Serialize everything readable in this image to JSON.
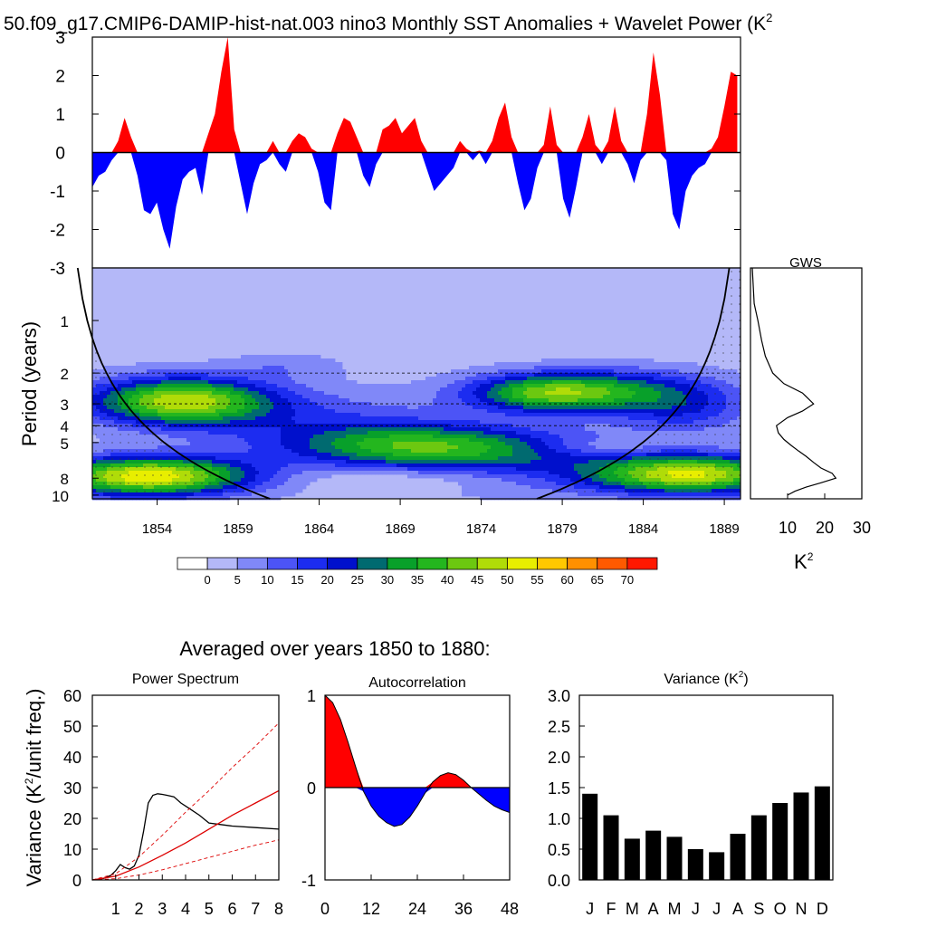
{
  "title": "50.f09_g17.CMIP6-DAMIP-hist-nat.003 nino3 Monthly SST Anomalies + Wavelet Power (K",
  "title_superscript": "2",
  "colors": {
    "positive": "#ff0000",
    "negative": "#0000ff",
    "line": "#000000",
    "red_line": "#dd0000"
  },
  "chart_data": [
    {
      "id": "timeseries",
      "type": "area",
      "ylim": [
        -3,
        3
      ],
      "yticks": [
        "3",
        "2",
        "1",
        "0",
        "-1",
        "-2",
        "-3"
      ],
      "x": [
        1850.0,
        1850.4,
        1850.8,
        1851.2,
        1851.6,
        1852.0,
        1852.4,
        1852.8,
        1853.2,
        1853.6,
        1854.0,
        1854.4,
        1854.8,
        1855.2,
        1855.6,
        1856.0,
        1856.4,
        1856.8,
        1857.2,
        1857.6,
        1858.0,
        1858.4,
        1858.8,
        1859.2,
        1859.6,
        1860.0,
        1860.4,
        1860.8,
        1861.2,
        1861.6,
        1862.0,
        1862.4,
        1862.8,
        1863.2,
        1863.6,
        1864.0,
        1864.4,
        1864.8,
        1865.2,
        1865.6,
        1866.0,
        1866.4,
        1866.8,
        1867.2,
        1867.6,
        1868.0,
        1868.4,
        1868.8,
        1869.2,
        1869.6,
        1870.0,
        1870.4,
        1870.8,
        1871.2,
        1871.6,
        1872.0,
        1872.4,
        1872.8,
        1873.2,
        1873.6,
        1874.0,
        1874.4,
        1874.8,
        1875.2,
        1875.6,
        1876.0,
        1876.4,
        1876.8,
        1877.2,
        1877.6,
        1878.0,
        1878.4,
        1878.8,
        1879.2,
        1879.6,
        1880.0,
        1880.4,
        1880.8,
        1881.2,
        1881.6,
        1882.0,
        1882.4,
        1882.8,
        1883.2,
        1883.6,
        1884.0,
        1884.4,
        1884.8,
        1885.2,
        1885.6,
        1886.0,
        1886.4,
        1886.8,
        1887.2,
        1887.6,
        1888.0,
        1888.4,
        1888.8,
        1889.2,
        1889.6,
        1890.0
      ],
      "values": [
        -0.9,
        -0.6,
        -0.5,
        -0.2,
        0.3,
        0.9,
        0.4,
        -0.6,
        -1.5,
        -1.6,
        -1.3,
        -2.0,
        -2.5,
        -1.4,
        -0.7,
        -0.5,
        -0.4,
        -1.1,
        0.5,
        1.0,
        2.1,
        3.0,
        0.6,
        -0.8,
        -1.6,
        -0.8,
        -0.3,
        -0.2,
        0.3,
        -0.3,
        -0.5,
        0.3,
        0.5,
        0.4,
        0.1,
        -0.5,
        -1.3,
        -1.5,
        0.5,
        0.9,
        0.8,
        0.4,
        -0.6,
        -0.9,
        -0.3,
        0.6,
        0.7,
        0.9,
        0.5,
        0.7,
        0.9,
        0.3,
        -0.5,
        -1.0,
        -0.8,
        -0.6,
        -0.4,
        0.3,
        0.1,
        -0.2,
        0.05,
        -0.3,
        0.3,
        0.9,
        1.3,
        0.4,
        -0.8,
        -1.5,
        -1.2,
        -0.4,
        0.2,
        1.2,
        0.2,
        -1.2,
        -1.7,
        -0.9,
        0.4,
        1.0,
        0.2,
        -0.3,
        0.3,
        1.2,
        0.3,
        -0.3,
        -0.8,
        -0.2,
        1.0,
        2.6,
        1.5,
        -0.2,
        -1.6,
        -2.0,
        -1.0,
        -0.6,
        -0.4,
        -0.3,
        0.1,
        0.4,
        1.2,
        2.1,
        2.0
      ]
    },
    {
      "id": "wavelet",
      "type": "heatmap",
      "ylabel": "Period (years)",
      "x_ticks": [
        "1854",
        "1859",
        "1864",
        "1869",
        "1874",
        "1879",
        "1884",
        "1889"
      ],
      "y_ticks": [
        "1",
        "2",
        "3",
        "4",
        "5",
        "8",
        "10"
      ],
      "y_tick_values": [
        1,
        2,
        3,
        4,
        5,
        8,
        10
      ],
      "ylim": [
        0.5,
        10.5
      ],
      "xlim": [
        1850,
        1890
      ],
      "dashed_periods": [
        2,
        3,
        4
      ],
      "blobs": [
        {
          "x": 1855.5,
          "p": 2.9,
          "sx": 4.0,
          "sy": 0.22,
          "v": 46
        },
        {
          "x": 1853.5,
          "p": 7.8,
          "sx": 4.5,
          "sy": 0.18,
          "v": 52
        },
        {
          "x": 1887.0,
          "p": 7.6,
          "sx": 4.5,
          "sy": 0.18,
          "v": 48
        },
        {
          "x": 1870.5,
          "p": 5.2,
          "sx": 6.0,
          "sy": 0.2,
          "v": 32
        },
        {
          "x": 1878.0,
          "p": 2.6,
          "sx": 3.5,
          "sy": 0.18,
          "v": 36
        },
        {
          "x": 1883.5,
          "p": 2.5,
          "sx": 4.0,
          "sy": 0.2,
          "v": 18
        },
        {
          "x": 1886.5,
          "p": 3.3,
          "sx": 3.0,
          "sy": 0.22,
          "v": 14
        },
        {
          "x": 1864.5,
          "p": 3.8,
          "sx": 5.5,
          "sy": 0.3,
          "v": 10
        },
        {
          "x": 1862.0,
          "p": 1.8,
          "sx": 2.5,
          "sy": 0.12,
          "v": 6
        },
        {
          "x": 1875.0,
          "p": 7.0,
          "sx": 6.0,
          "sy": 0.25,
          "v": 12
        }
      ],
      "coi_left": 1848.5,
      "coi_right": 1889.9
    },
    {
      "id": "gws",
      "type": "line",
      "title": "GWS",
      "xlabel": "K",
      "xlabel_superscript": "2",
      "x_ticks": [
        "10",
        "20",
        "30"
      ],
      "x_tick_values": [
        10,
        20,
        30
      ],
      "xlim": [
        0,
        30
      ],
      "period": [
        0.5,
        0.8,
        1.0,
        1.3,
        1.6,
        2.0,
        2.3,
        2.6,
        3.0,
        3.3,
        3.6,
        4.0,
        4.4,
        4.8,
        5.2,
        5.6,
        6.0,
        6.5,
        7.0,
        7.5,
        8.0,
        8.5,
        9.0,
        9.5,
        10.0
      ],
      "power": [
        0.5,
        1.0,
        2.0,
        3.0,
        4.0,
        6.0,
        9.0,
        14.0,
        17.0,
        14.0,
        10.0,
        7.0,
        7.5,
        9.0,
        11.0,
        13.0,
        15.0,
        17.0,
        19.0,
        22.0,
        23.0,
        19.0,
        15.0,
        12.0,
        10.0
      ]
    },
    {
      "id": "colorbar",
      "type": "table",
      "labels": [
        "0",
        "5",
        "10",
        "15",
        "20",
        "25",
        "30",
        "35",
        "40",
        "45",
        "50",
        "55",
        "60",
        "65",
        "70"
      ],
      "colors": [
        "#ffffff",
        "#b4b8f8",
        "#8088f8",
        "#4c54f6",
        "#1c2cf0",
        "#0010cc",
        "#006a70",
        "#08a02a",
        "#24b61e",
        "#6cc810",
        "#b0dc08",
        "#e8ee00",
        "#ffc800",
        "#ff9000",
        "#ff5a00",
        "#ff1800"
      ]
    },
    {
      "id": "power_spectrum",
      "type": "line",
      "title": "Power Spectrum",
      "ylabel": "Variance (K",
      "ylabel_superscript": "2",
      "ylabel_suffix": "/unit freq.)",
      "yticks": [
        "0",
        "10",
        "20",
        "30",
        "40",
        "50",
        "60"
      ],
      "ylim": [
        0,
        60
      ],
      "xticks": [
        "1",
        "2",
        "3",
        "4",
        "5",
        "6",
        "7",
        "8"
      ],
      "xlim": [
        0,
        8
      ],
      "series": [
        {
          "x": [
            0,
            0.5,
            0.8,
            1.0,
            1.2,
            1.4,
            1.6,
            1.8,
            2.0,
            2.2,
            2.4,
            2.6,
            2.8,
            3.0,
            3.2,
            3.5,
            3.8,
            4.2,
            4.6,
            5.0,
            5.5,
            6.0,
            7.0,
            8.0
          ],
          "values": [
            0,
            0.5,
            1.5,
            3.0,
            5.0,
            4.0,
            3.5,
            4.5,
            8.0,
            16.0,
            25.0,
            27.5,
            28.0,
            27.8,
            27.5,
            27.0,
            25.0,
            23.0,
            21.0,
            18.5,
            18.0,
            17.5,
            17.0,
            16.5
          ]
        },
        {
          "x": [
            0,
            1,
            2,
            3,
            4,
            5,
            6,
            7,
            8
          ],
          "values": [
            0,
            1.2,
            4.2,
            8.0,
            12.0,
            16.5,
            21.0,
            25.0,
            29.0
          ]
        },
        {
          "x": [
            0,
            1,
            2,
            3,
            4,
            5,
            6,
            7,
            8
          ],
          "values": [
            0,
            2.0,
            7.5,
            14.5,
            22.0,
            29.0,
            36.5,
            43.5,
            51.0
          ]
        },
        {
          "x": [
            0,
            1,
            2,
            3,
            4,
            5,
            6,
            7,
            8
          ],
          "values": [
            0,
            0.4,
            1.6,
            3.3,
            5.3,
            7.3,
            9.3,
            11.3,
            13.0
          ]
        }
      ]
    },
    {
      "id": "autocorrelation",
      "type": "area",
      "title": "Autocorrelation",
      "yticks": [
        "1",
        "0",
        "-1"
      ],
      "ylim": [
        -1,
        1
      ],
      "xticks": [
        "0",
        "12",
        "24",
        "36",
        "48"
      ],
      "xlim": [
        0,
        48
      ],
      "x": [
        0,
        2,
        4,
        6,
        8,
        10,
        12,
        14,
        16,
        18,
        20,
        22,
        24,
        26,
        28,
        30,
        32,
        34,
        36,
        38,
        40,
        42,
        44,
        46,
        48
      ],
      "values": [
        1.0,
        0.92,
        0.74,
        0.49,
        0.22,
        -0.04,
        -0.2,
        -0.31,
        -0.38,
        -0.42,
        -0.4,
        -0.32,
        -0.2,
        -0.06,
        0.06,
        0.13,
        0.16,
        0.14,
        0.08,
        0.0,
        -0.07,
        -0.14,
        -0.2,
        -0.24,
        -0.27
      ]
    },
    {
      "id": "variance",
      "type": "bar",
      "title": "Variance (K",
      "title_superscript": "2",
      "title_suffix": ")",
      "yticks": [
        "0.0",
        "0.5",
        "1.0",
        "1.5",
        "2.0",
        "2.5",
        "3.0"
      ],
      "ylim": [
        0,
        3
      ],
      "categories": [
        "J",
        "F",
        "M",
        "A",
        "M",
        "J",
        "J",
        "A",
        "S",
        "O",
        "N",
        "D"
      ],
      "values": [
        1.4,
        1.05,
        0.67,
        0.8,
        0.7,
        0.5,
        0.45,
        0.75,
        1.05,
        1.25,
        1.42,
        1.52
      ]
    }
  ],
  "subheading": "Averaged over years 1850 to 1880:"
}
